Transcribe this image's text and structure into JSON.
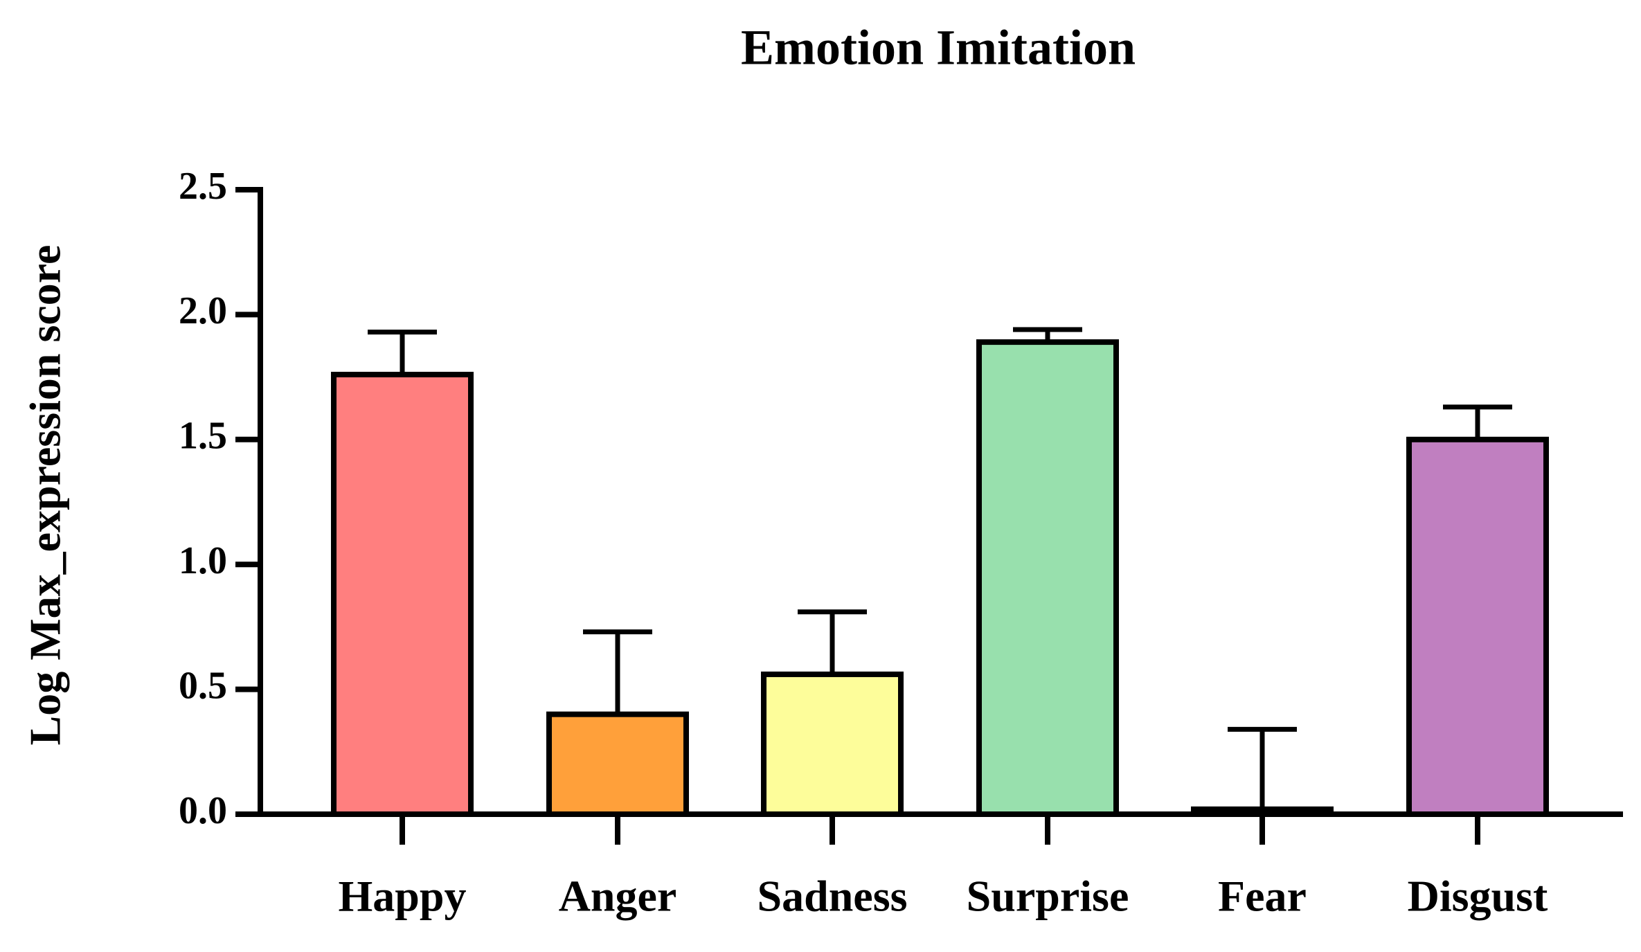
{
  "chart_data": {
    "type": "bar",
    "title": "Emotion Imitation",
    "y_label": "Log Max_expression score",
    "categories": [
      "Happy",
      "Anger",
      "Sadness",
      "Surprise",
      "Fear",
      "Disgust"
    ],
    "values": [
      1.76,
      0.4,
      0.56,
      1.89,
      0.02,
      1.5
    ],
    "errors": [
      0.17,
      0.33,
      0.25,
      0.05,
      0.32,
      0.13
    ],
    "colors": [
      "#ff7f7f",
      "#ffa03a",
      "#fdfd9a",
      "#98e0ad",
      "#222222",
      "#c07fc0"
    ],
    "ylim": [
      0,
      2.5
    ],
    "yticks": [
      {
        "value": 0,
        "label": "0.0"
      },
      {
        "value": 0.5,
        "label": "0.5"
      },
      {
        "value": 1,
        "label": "1.0"
      },
      {
        "value": 1.5,
        "label": "1.5"
      },
      {
        "value": 2,
        "label": "2.0"
      },
      {
        "value": 2.5,
        "label": "2.5"
      }
    ],
    "grid": false
  }
}
